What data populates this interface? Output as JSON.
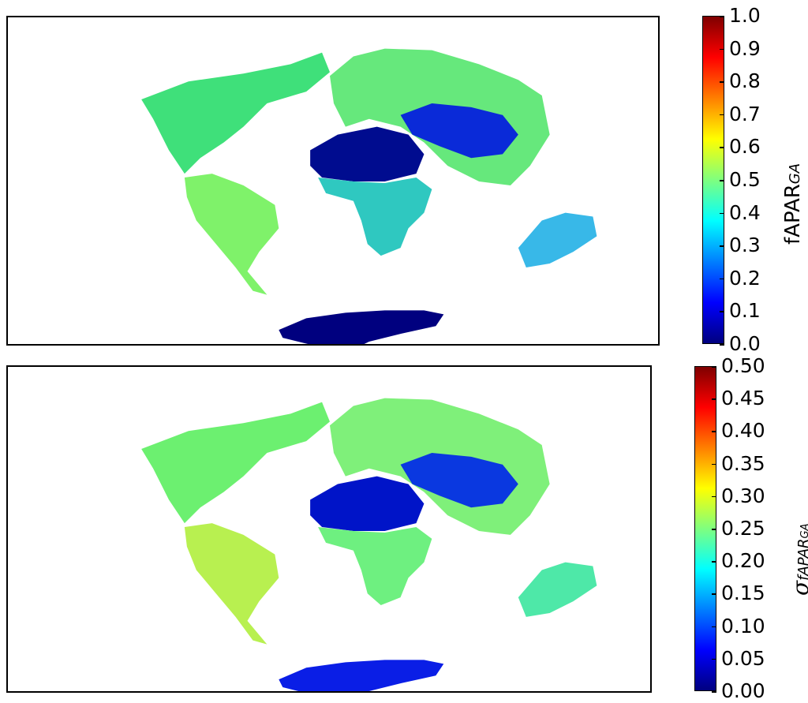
{
  "colormap": {
    "name": "jet",
    "stops": [
      "#00007f",
      "#0000ff",
      "#007fff",
      "#00ffff",
      "#7fff7f",
      "#ffff00",
      "#ff7f00",
      "#ff0000",
      "#7f0000"
    ]
  },
  "panels": [
    {
      "id": "top",
      "colorbar": {
        "label_main": "fAPAR",
        "label_sub": "GA",
        "min": 0.0,
        "max": 1.0,
        "ticks": [
          "0.0",
          "0.1",
          "0.2",
          "0.3",
          "0.4",
          "0.5",
          "0.6",
          "0.7",
          "0.8",
          "0.9",
          "1.0"
        ]
      },
      "region_colors": {
        "north_america": "#3fe07a",
        "south_america": "#7ff26a",
        "europe_asia": "#66e87c",
        "sahara": "#000c8f",
        "central_asia": "#0a2ad8",
        "africa": "#2fc8c0",
        "australia": "#38b8e8",
        "antarctica": "#00007f"
      }
    },
    {
      "id": "bottom",
      "colorbar": {
        "label_main": "σ",
        "label_sub": "fAPAR",
        "label_sub2": "GA",
        "min": 0.0,
        "max": 0.5,
        "ticks": [
          "0.00",
          "0.05",
          "0.10",
          "0.15",
          "0.20",
          "0.25",
          "0.30",
          "0.35",
          "0.40",
          "0.45",
          "0.50"
        ]
      },
      "region_colors": {
        "north_america": "#6cf070",
        "south_america": "#b8f050",
        "europe_asia": "#7ff07a",
        "sahara": "#0014c8",
        "central_asia": "#0a38e0",
        "africa": "#6ef080",
        "australia": "#4ee8a8",
        "antarctica": "#0a1ee6"
      }
    }
  ]
}
